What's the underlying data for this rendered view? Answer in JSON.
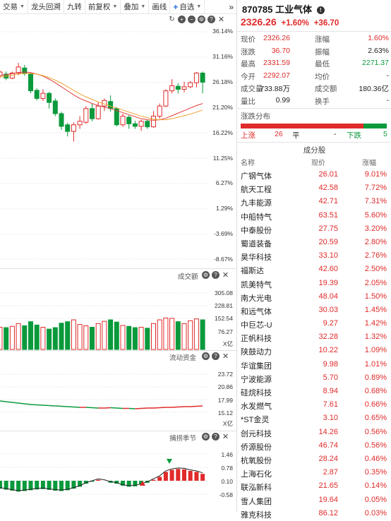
{
  "toolbar": {
    "items": [
      "交易",
      "龙头回溯",
      "九转",
      "前复权",
      "叠加",
      "画线",
      "自选"
    ],
    "more": "»"
  },
  "kline_panel": {
    "axis_labels": [
      "36.14%",
      "31.16%",
      "26.18%",
      "21.20%",
      "16.22%",
      "11.25%",
      "6.27%",
      "1.29%",
      "-3.69%",
      "-8.67%"
    ]
  },
  "volume_panel": {
    "title": "成交额",
    "axis_labels": [
      "305.08",
      "228.81",
      "152.54",
      "76.27"
    ],
    "unit": "X亿"
  },
  "flow_panel": {
    "title": "流动资金",
    "axis_labels": [
      "23.72",
      "20.86",
      "17.99",
      "15.12"
    ],
    "unit": "X亿"
  },
  "season_panel": {
    "title": "捕捞季节",
    "axis_labels": [
      "1.46",
      "0.78",
      "0.10",
      "-0.58"
    ]
  },
  "colors": {
    "up": "#e12a2a",
    "down": "#0a9a3c",
    "ma1": "#e23b3b",
    "ma2": "#f0a030"
  },
  "quote": {
    "code": "870785",
    "name": "工业气体",
    "price": "2326.26",
    "change_pct": "+1.60%",
    "change": "+36.70",
    "rows": [
      {
        "k1": "现价",
        "v1": "2326.26",
        "c1": "red",
        "k2": "涨幅",
        "v2": "1.60%",
        "c2": "red"
      },
      {
        "k1": "涨跌",
        "v1": "36.70",
        "c1": "red",
        "k2": "振幅",
        "v2": "2.63%",
        "c2": ""
      },
      {
        "k1": "最高",
        "v1": "2331.59",
        "c1": "red",
        "k2": "最低",
        "v2": "2271.37",
        "c2": "grn"
      },
      {
        "k1": "今开",
        "v1": "2292.07",
        "c1": "red",
        "k2": "均价",
        "v2": "-",
        "c2": ""
      },
      {
        "k1": "成交量",
        "v1": "733.88万",
        "c1": "",
        "k2": "成交额",
        "v2": "180.36亿",
        "c2": ""
      },
      {
        "k1": "量比",
        "v1": "0.99",
        "c1": "",
        "k2": "换手",
        "v2": "-",
        "c2": ""
      }
    ]
  },
  "distribution": {
    "title": "涨跌分布",
    "up_label": "上涨",
    "up": "26",
    "flat_label": "平",
    "flat": "-",
    "down_label": "下跌",
    "down": "5"
  },
  "constituents": {
    "title": "成分股",
    "headers": [
      "名称",
      "现价",
      "涨幅"
    ],
    "rows": [
      {
        "name": "广钢气体",
        "price": "26.01",
        "chg": "9.01%"
      },
      {
        "name": "航天工程",
        "price": "42.58",
        "chg": "7.72%"
      },
      {
        "name": "九丰能源",
        "price": "42.71",
        "chg": "7.31%"
      },
      {
        "name": "中船特气",
        "price": "63.51",
        "chg": "5.60%"
      },
      {
        "name": "中泰股份",
        "price": "27.75",
        "chg": "3.20%"
      },
      {
        "name": "蜀道装备",
        "price": "20.59",
        "chg": "2.80%"
      },
      {
        "name": "昊华科技",
        "price": "33.10",
        "chg": "2.76%"
      },
      {
        "name": "福斯达",
        "price": "42.60",
        "chg": "2.50%"
      },
      {
        "name": "凯美特气",
        "price": "19.39",
        "chg": "2.05%"
      },
      {
        "name": "南大光电",
        "price": "48.04",
        "chg": "1.50%"
      },
      {
        "name": "和远气体",
        "price": "30.03",
        "chg": "1.45%"
      },
      {
        "name": "中巨芯-U",
        "price": "9.27",
        "chg": "1.42%"
      },
      {
        "name": "正帆科技",
        "price": "32.28",
        "chg": "1.32%"
      },
      {
        "name": "陕鼓动力",
        "price": "10.22",
        "chg": "1.09%"
      },
      {
        "name": "华谊集团",
        "price": "9.98",
        "chg": "1.01%"
      },
      {
        "name": "宁波能源",
        "price": "5.70",
        "chg": "0.89%"
      },
      {
        "name": "硅烷科技",
        "price": "8.94",
        "chg": "0.68%"
      },
      {
        "name": "水发燃气",
        "price": "7.61",
        "chg": "0.66%"
      },
      {
        "name": "*ST金灵",
        "price": "3.10",
        "chg": "0.65%"
      },
      {
        "name": "创元科技",
        "price": "14.26",
        "chg": "0.56%"
      },
      {
        "name": "侨源股份",
        "price": "46.74",
        "chg": "0.56%"
      },
      {
        "name": "杭氧股份",
        "price": "28.24",
        "chg": "0.46%"
      },
      {
        "name": "上海石化",
        "price": "2.87",
        "chg": "0.35%"
      },
      {
        "name": "联泓新科",
        "price": "21.65",
        "chg": "0.14%"
      },
      {
        "name": "雪人集团",
        "price": "19.64",
        "chg": "0.05%"
      },
      {
        "name": "雅克科技",
        "price": "86.12",
        "chg": "0.03%"
      }
    ]
  }
}
